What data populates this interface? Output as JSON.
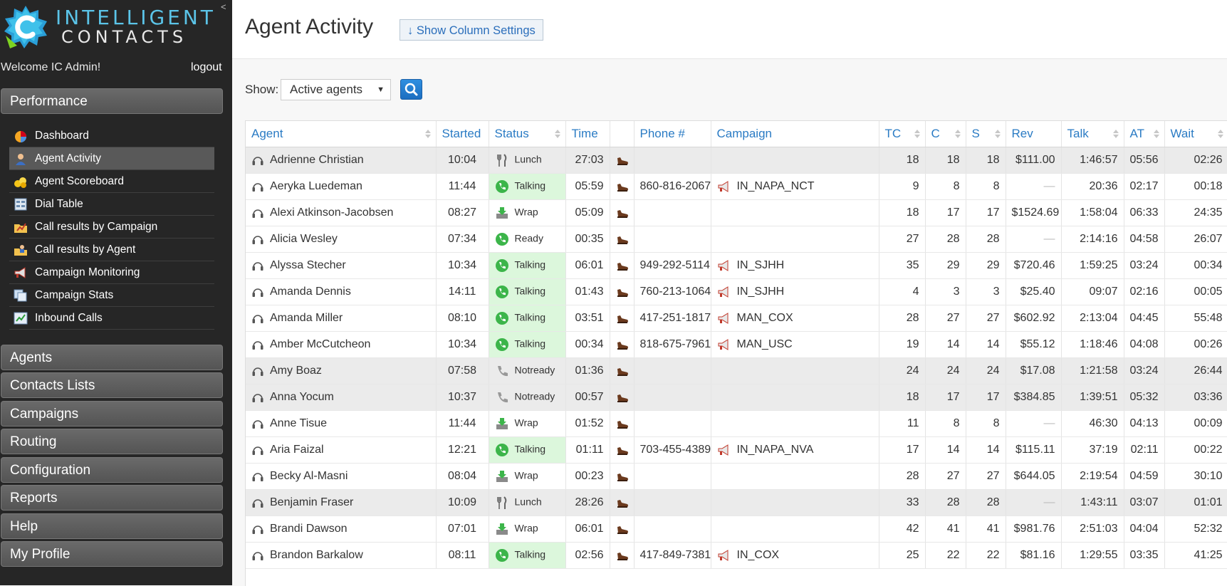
{
  "logo": {
    "line1": "INTELLIGENT",
    "line2": "CONTACTS",
    "collapse": "<"
  },
  "sidebar": {
    "welcome": "Welcome IC Admin!",
    "logout": "logout",
    "performance": {
      "label": "Performance",
      "items": [
        {
          "label": "Dashboard",
          "icon": "dashboard-icon"
        },
        {
          "label": "Agent Activity",
          "icon": "agent-icon",
          "selected": true
        },
        {
          "label": "Agent Scoreboard",
          "icon": "scoreboard-icon"
        },
        {
          "label": "Dial Table",
          "icon": "dial-table-icon"
        },
        {
          "label": "Call results by Campaign",
          "icon": "folder-chart-icon"
        },
        {
          "label": "Call results by Agent",
          "icon": "folder-agent-icon"
        },
        {
          "label": "Campaign Monitoring",
          "icon": "megaphone-icon"
        },
        {
          "label": "Campaign Stats",
          "icon": "stats-icon"
        },
        {
          "label": "Inbound Calls",
          "icon": "inbound-icon"
        }
      ]
    },
    "sections": [
      "Agents",
      "Contacts Lists",
      "Campaigns",
      "Routing",
      "Configuration",
      "Reports",
      "Help",
      "My Profile"
    ]
  },
  "header": {
    "title": "Agent Activity",
    "column_settings": "↓ Show Column Settings"
  },
  "filter": {
    "label": "Show:",
    "selected": "Active agents",
    "caret": "▼"
  },
  "table": {
    "columns": [
      "Agent",
      "Started",
      "Status",
      "Time",
      "",
      "Phone #",
      "Campaign",
      "TC",
      "C",
      "S",
      "Rev",
      "Talk",
      "AT",
      "Wait"
    ],
    "rows": [
      {
        "agent": "Adrienne Christian",
        "started": "10:04",
        "status": "Lunch",
        "time": "27:03",
        "phone": "",
        "campaign": "",
        "tc": "18",
        "c": "18",
        "s": "18",
        "rev": "$111.00",
        "talk": "1:46:57",
        "at": "05:56",
        "wait": "02:26"
      },
      {
        "agent": "Aeryka Luedeman",
        "started": "11:44",
        "status": "Talking",
        "time": "05:59",
        "phone": "860-816-2067",
        "campaign": "IN_NAPA_NCT",
        "tc": "9",
        "c": "8",
        "s": "8",
        "rev": "—",
        "talk": "20:36",
        "at": "02:17",
        "wait": "00:18"
      },
      {
        "agent": "Alexi Atkinson-Jacobsen",
        "started": "08:27",
        "status": "Wrap",
        "time": "05:09",
        "phone": "",
        "campaign": "",
        "tc": "18",
        "c": "17",
        "s": "17",
        "rev": "$1524.69",
        "talk": "1:58:04",
        "at": "06:33",
        "wait": "24:35"
      },
      {
        "agent": "Alicia Wesley",
        "started": "07:34",
        "status": "Ready",
        "time": "00:35",
        "phone": "",
        "campaign": "",
        "tc": "27",
        "c": "28",
        "s": "28",
        "rev": "—",
        "talk": "2:14:16",
        "at": "04:58",
        "wait": "26:07"
      },
      {
        "agent": "Alyssa Stecher",
        "started": "10:34",
        "status": "Talking",
        "time": "06:01",
        "phone": "949-292-5114",
        "campaign": "IN_SJHH",
        "tc": "35",
        "c": "29",
        "s": "29",
        "rev": "$720.46",
        "talk": "1:59:25",
        "at": "03:24",
        "wait": "00:34"
      },
      {
        "agent": "Amanda Dennis",
        "started": "14:11",
        "status": "Talking",
        "time": "01:43",
        "phone": "760-213-1064",
        "campaign": "IN_SJHH",
        "tc": "4",
        "c": "3",
        "s": "3",
        "rev": "$25.40",
        "talk": "09:07",
        "at": "02:16",
        "wait": "00:05"
      },
      {
        "agent": "Amanda Miller",
        "started": "08:10",
        "status": "Talking",
        "time": "03:51",
        "phone": "417-251-1817",
        "campaign": "MAN_COX",
        "tc": "28",
        "c": "27",
        "s": "27",
        "rev": "$602.92",
        "talk": "2:13:04",
        "at": "04:45",
        "wait": "55:48"
      },
      {
        "agent": "Amber McCutcheon",
        "started": "10:34",
        "status": "Talking",
        "time": "00:34",
        "phone": "818-675-7961",
        "campaign": "MAN_USC",
        "tc": "19",
        "c": "14",
        "s": "14",
        "rev": "$55.12",
        "talk": "1:18:46",
        "at": "04:08",
        "wait": "00:26"
      },
      {
        "agent": "Amy Boaz",
        "started": "07:58",
        "status": "Notready",
        "time": "01:36",
        "phone": "",
        "campaign": "",
        "tc": "24",
        "c": "24",
        "s": "24",
        "rev": "$17.08",
        "talk": "1:21:58",
        "at": "03:24",
        "wait": "26:44"
      },
      {
        "agent": "Anna Yocum",
        "started": "10:37",
        "status": "Notready",
        "time": "00:57",
        "phone": "",
        "campaign": "",
        "tc": "18",
        "c": "17",
        "s": "17",
        "rev": "$384.85",
        "talk": "1:39:51",
        "at": "05:32",
        "wait": "03:36"
      },
      {
        "agent": "Anne Tisue",
        "started": "11:44",
        "status": "Wrap",
        "time": "01:52",
        "phone": "",
        "campaign": "",
        "tc": "11",
        "c": "8",
        "s": "8",
        "rev": "—",
        "talk": "46:30",
        "at": "04:13",
        "wait": "00:09"
      },
      {
        "agent": "Aria Faizal",
        "started": "12:21",
        "status": "Talking",
        "time": "01:11",
        "phone": "703-455-4389",
        "campaign": "IN_NAPA_NVA",
        "tc": "17",
        "c": "14",
        "s": "14",
        "rev": "$115.11",
        "talk": "37:19",
        "at": "02:11",
        "wait": "00:22"
      },
      {
        "agent": "Becky Al-Masni",
        "started": "08:04",
        "status": "Wrap",
        "time": "00:23",
        "phone": "",
        "campaign": "",
        "tc": "28",
        "c": "27",
        "s": "27",
        "rev": "$644.05",
        "talk": "2:19:54",
        "at": "04:59",
        "wait": "30:10"
      },
      {
        "agent": "Benjamin Fraser",
        "started": "10:09",
        "status": "Lunch",
        "time": "28:26",
        "phone": "",
        "campaign": "",
        "tc": "33",
        "c": "28",
        "s": "28",
        "rev": "—",
        "talk": "1:43:11",
        "at": "03:07",
        "wait": "01:01"
      },
      {
        "agent": "Brandi Dawson",
        "started": "07:01",
        "status": "Wrap",
        "time": "06:01",
        "phone": "",
        "campaign": "",
        "tc": "42",
        "c": "41",
        "s": "41",
        "rev": "$981.76",
        "talk": "2:51:03",
        "at": "04:04",
        "wait": "52:32"
      },
      {
        "agent": "Brandon Barkalow",
        "started": "08:11",
        "status": "Talking",
        "time": "02:56",
        "phone": "417-849-7381",
        "campaign": "IN_COX",
        "tc": "25",
        "c": "22",
        "s": "22",
        "rev": "$81.16",
        "talk": "1:29:55",
        "at": "03:35",
        "wait": "41:25"
      }
    ]
  },
  "colors": {
    "sidebar_bg": "#262626",
    "link_blue": "#2a7bc4",
    "talking_bg": "#dcf7dc",
    "lunch_row_bg": "#ebebeb"
  }
}
